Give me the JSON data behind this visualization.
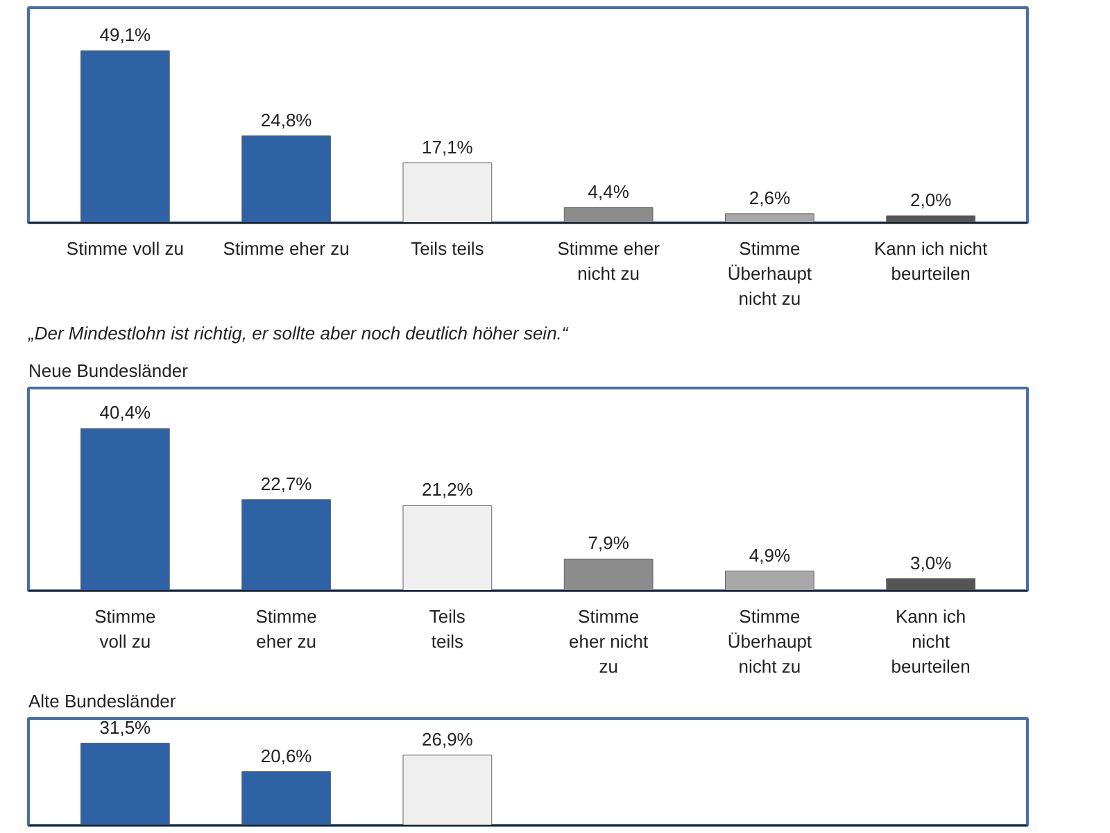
{
  "chart_data": [
    {
      "type": "bar",
      "categories": [
        "Stimme voll zu",
        "Stimme eher zu",
        "Teils teils",
        "Stimme eher nicht zu",
        "Stimme Überhaupt nicht zu",
        "Kann ich nicht beurteilen"
      ],
      "values": [
        49.1,
        24.8,
        17.1,
        4.4,
        2.6,
        2.0
      ],
      "value_labels": [
        "49,1%",
        "24,8%",
        "17,1%",
        "4,4%",
        "2,6%",
        "2,0%"
      ],
      "colors": [
        "#2e62a4",
        "#2e62a4",
        "#efefef",
        "#8c8c8c",
        "#a8a8a8",
        "#555555"
      ],
      "tick_labels": "x",
      "grid": false
    },
    {
      "type": "bar",
      "title": "„Der Mindestlohn ist richtig, er sollte aber noch deutlich höher sein.“",
      "subtitle": "Neue Bundesländer",
      "categories": [
        "Stimme voll zu",
        "Stimme eher zu",
        "Teils teils",
        "Stimme eher nicht zu",
        "Stimme Überhaupt nicht zu",
        "Kann ich nicht beurteilen"
      ],
      "values": [
        40.4,
        22.7,
        21.2,
        7.9,
        4.9,
        3.0
      ],
      "value_labels": [
        "40,4%",
        "22,7%",
        "21,2%",
        "7,9%",
        "4,9%",
        "3,0%"
      ],
      "colors": [
        "#2e62a4",
        "#2e62a4",
        "#efefef",
        "#8c8c8c",
        "#a8a8a8",
        "#555555"
      ],
      "tick_labels": "x",
      "grid": false
    },
    {
      "type": "bar",
      "subtitle": "Alte Bundesländer",
      "categories": [
        null,
        null,
        null,
        null,
        null,
        null
      ],
      "values": [
        31.5,
        20.6,
        26.9,
        null,
        null,
        null
      ],
      "value_labels": [
        "31,5%",
        "20,6%",
        "26,9%",
        null,
        null,
        null
      ],
      "colors": [
        "#2e62a4",
        "#2e62a4",
        "#efefef",
        "#8c8c8c",
        "#a8a8a8",
        "#555555"
      ],
      "tick_labels": false,
      "grid": false
    }
  ]
}
